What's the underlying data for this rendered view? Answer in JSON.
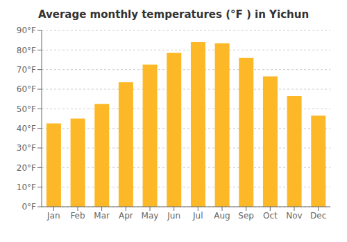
{
  "chart_data": {
    "type": "bar",
    "title": "Average monthly temperatures (°F ) in Yichun",
    "categories": [
      "Jan",
      "Feb",
      "Mar",
      "Apr",
      "May",
      "Jun",
      "Jul",
      "Aug",
      "Sep",
      "Oct",
      "Nov",
      "Dec"
    ],
    "values": [
      42.5,
      45.0,
      52.5,
      63.5,
      72.5,
      78.5,
      84.0,
      83.5,
      76.0,
      66.5,
      56.5,
      46.5
    ],
    "color": "#FDB827",
    "ylim": [
      0,
      90
    ],
    "yticks": [
      {
        "value": 0,
        "label": "0°F"
      },
      {
        "value": 10,
        "label": "10°F"
      },
      {
        "value": 20,
        "label": "20°F"
      },
      {
        "value": 30,
        "label": "30°F"
      },
      {
        "value": 40,
        "label": "40°F"
      },
      {
        "value": 50,
        "label": "50°F"
      },
      {
        "value": 60,
        "label": "60°F"
      },
      {
        "value": 70,
        "label": "70°F"
      },
      {
        "value": 80,
        "label": "80°F"
      },
      {
        "value": 90,
        "label": "90°F"
      }
    ],
    "grid": true
  }
}
